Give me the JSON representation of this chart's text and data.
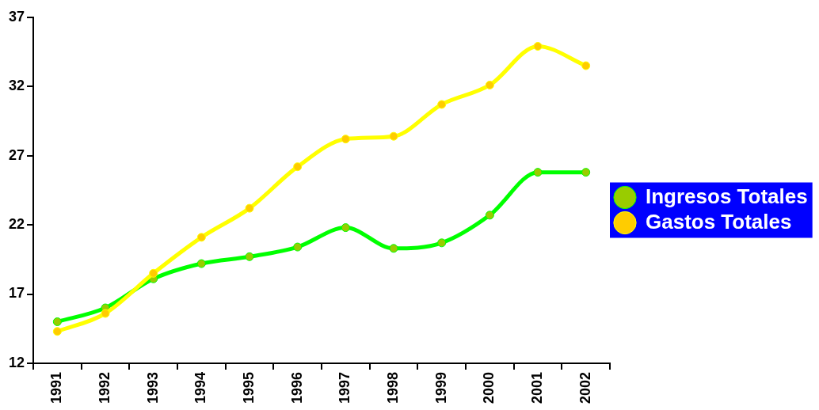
{
  "chart_data": {
    "type": "line",
    "categories": [
      "1991",
      "1992",
      "1993",
      "1994",
      "1995",
      "1996",
      "1997",
      "1998",
      "1999",
      "2000",
      "2001",
      "2002"
    ],
    "series": [
      {
        "name": "Ingresos Totales",
        "color": "#00ff00",
        "values": [
          15.0,
          16.0,
          18.1,
          19.2,
          19.7,
          20.4,
          21.8,
          20.3,
          20.7,
          22.7,
          25.8,
          25.8
        ]
      },
      {
        "name": "Gastos Totales",
        "color": "#ffff00",
        "values": [
          14.3,
          15.6,
          18.5,
          21.1,
          23.2,
          26.2,
          28.2,
          28.4,
          30.7,
          32.1,
          34.9,
          33.5
        ]
      }
    ],
    "ylim": [
      12,
      37
    ],
    "yticks": [
      12,
      17,
      22,
      27,
      32,
      37
    ],
    "grid": false,
    "legend": "right",
    "marker": "circle",
    "line_style": "solid"
  }
}
